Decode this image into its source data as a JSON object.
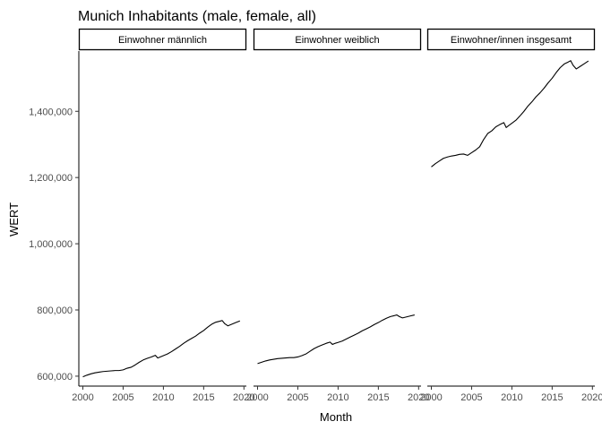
{
  "chart_data": {
    "type": "line",
    "title": "Munich Inhabitants (male, female, all)",
    "xlabel": "Month",
    "ylabel": "WERT",
    "x_ticks": [
      "2000",
      "2005",
      "2010",
      "2015",
      "2020"
    ],
    "y_ticks": [
      "600,000",
      "800,000",
      "1,000,000",
      "1,200,000",
      "1,400,000"
    ],
    "xlim": [
      1999.5,
      2020.3
    ],
    "ylim": [
      570000,
      1582000
    ],
    "grid": false,
    "panels": [
      {
        "label": "Einwohner männlich",
        "points": [
          [
            2000.0,
            598000
          ],
          [
            2000.5,
            603000
          ],
          [
            2001.0,
            607000
          ],
          [
            2001.5,
            610000
          ],
          [
            2002.0,
            612000
          ],
          [
            2002.5,
            614000
          ],
          [
            2003.0,
            615000
          ],
          [
            2003.5,
            616000
          ],
          [
            2004.0,
            617000
          ],
          [
            2004.5,
            617000
          ],
          [
            2005.0,
            619000
          ],
          [
            2005.5,
            624000
          ],
          [
            2006.0,
            627000
          ],
          [
            2006.5,
            634000
          ],
          [
            2007.0,
            642000
          ],
          [
            2007.5,
            649000
          ],
          [
            2008.0,
            654000
          ],
          [
            2008.5,
            658000
          ],
          [
            2009.0,
            663000
          ],
          [
            2009.3,
            655000
          ],
          [
            2009.6,
            658000
          ],
          [
            2010.0,
            662000
          ],
          [
            2010.5,
            667000
          ],
          [
            2011.0,
            674000
          ],
          [
            2011.5,
            682000
          ],
          [
            2012.0,
            690000
          ],
          [
            2012.5,
            699000
          ],
          [
            2013.0,
            707000
          ],
          [
            2013.5,
            714000
          ],
          [
            2014.0,
            721000
          ],
          [
            2014.5,
            730000
          ],
          [
            2015.0,
            738000
          ],
          [
            2015.5,
            748000
          ],
          [
            2016.0,
            757000
          ],
          [
            2016.5,
            763000
          ],
          [
            2017.0,
            766000
          ],
          [
            2017.3,
            768000
          ],
          [
            2017.6,
            759000
          ],
          [
            2018.0,
            752000
          ],
          [
            2018.5,
            757000
          ],
          [
            2019.0,
            762000
          ],
          [
            2019.5,
            767000
          ]
        ]
      },
      {
        "label": "Einwohner weiblich",
        "points": [
          [
            2000.0,
            638000
          ],
          [
            2000.5,
            642000
          ],
          [
            2001.0,
            646000
          ],
          [
            2001.5,
            649000
          ],
          [
            2002.0,
            651000
          ],
          [
            2002.5,
            653000
          ],
          [
            2003.0,
            654000
          ],
          [
            2003.5,
            655000
          ],
          [
            2004.0,
            656000
          ],
          [
            2004.5,
            656000
          ],
          [
            2005.0,
            658000
          ],
          [
            2005.5,
            662000
          ],
          [
            2006.0,
            667000
          ],
          [
            2006.5,
            675000
          ],
          [
            2007.0,
            683000
          ],
          [
            2007.5,
            689000
          ],
          [
            2008.0,
            694000
          ],
          [
            2008.5,
            699000
          ],
          [
            2009.0,
            703000
          ],
          [
            2009.3,
            696000
          ],
          [
            2009.6,
            699000
          ],
          [
            2010.0,
            702000
          ],
          [
            2010.5,
            706000
          ],
          [
            2011.0,
            712000
          ],
          [
            2011.5,
            718000
          ],
          [
            2012.0,
            724000
          ],
          [
            2012.5,
            730000
          ],
          [
            2013.0,
            737000
          ],
          [
            2013.5,
            743000
          ],
          [
            2014.0,
            749000
          ],
          [
            2014.5,
            756000
          ],
          [
            2015.0,
            762000
          ],
          [
            2015.5,
            769000
          ],
          [
            2016.0,
            775000
          ],
          [
            2016.5,
            780000
          ],
          [
            2017.0,
            783000
          ],
          [
            2017.3,
            785000
          ],
          [
            2017.6,
            780000
          ],
          [
            2018.0,
            776000
          ],
          [
            2018.5,
            779000
          ],
          [
            2019.0,
            782000
          ],
          [
            2019.5,
            785000
          ]
        ]
      },
      {
        "label": "Einwohner/innen insgesamt",
        "points": [
          [
            2000.0,
            1232000
          ],
          [
            2000.5,
            1242000
          ],
          [
            2001.0,
            1250000
          ],
          [
            2001.5,
            1258000
          ],
          [
            2002.0,
            1262000
          ],
          [
            2002.5,
            1265000
          ],
          [
            2003.0,
            1267000
          ],
          [
            2003.5,
            1270000
          ],
          [
            2004.0,
            1271000
          ],
          [
            2004.5,
            1267000
          ],
          [
            2005.0,
            1275000
          ],
          [
            2005.5,
            1283000
          ],
          [
            2006.0,
            1293000
          ],
          [
            2006.5,
            1315000
          ],
          [
            2007.0,
            1333000
          ],
          [
            2007.5,
            1341000
          ],
          [
            2008.0,
            1353000
          ],
          [
            2008.5,
            1360000
          ],
          [
            2009.0,
            1366000
          ],
          [
            2009.3,
            1351000
          ],
          [
            2009.6,
            1357000
          ],
          [
            2010.0,
            1364000
          ],
          [
            2010.5,
            1373000
          ],
          [
            2011.0,
            1386000
          ],
          [
            2011.5,
            1400000
          ],
          [
            2012.0,
            1416000
          ],
          [
            2012.5,
            1429000
          ],
          [
            2013.0,
            1444000
          ],
          [
            2013.5,
            1456000
          ],
          [
            2014.0,
            1470000
          ],
          [
            2014.5,
            1486000
          ],
          [
            2015.0,
            1500000
          ],
          [
            2015.5,
            1517000
          ],
          [
            2016.0,
            1532000
          ],
          [
            2016.5,
            1543000
          ],
          [
            2017.0,
            1549000
          ],
          [
            2017.3,
            1553000
          ],
          [
            2017.6,
            1539000
          ],
          [
            2018.0,
            1528000
          ],
          [
            2018.5,
            1536000
          ],
          [
            2019.0,
            1544000
          ],
          [
            2019.5,
            1552000
          ]
        ]
      }
    ],
    "colors": {
      "line": "#000000",
      "text": "#000000",
      "tick_text": "#4d4d4d",
      "axis": "#000000",
      "strip_fill": "#ffffff"
    }
  }
}
